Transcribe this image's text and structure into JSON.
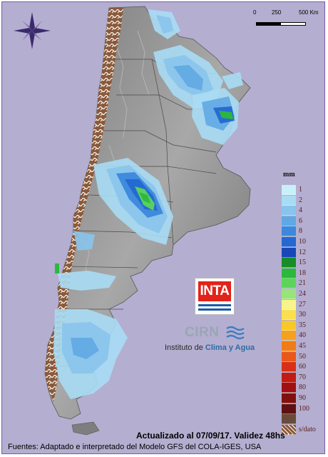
{
  "scale_bar": {
    "labels": [
      "0",
      "250",
      "500 Km"
    ]
  },
  "legend": {
    "title": "mm",
    "items": [
      {
        "label": "1",
        "color": "#c8f0f8"
      },
      {
        "label": "2",
        "color": "#a8dcf4"
      },
      {
        "label": "4",
        "color": "#88c4ec"
      },
      {
        "label": "6",
        "color": "#60a8e4"
      },
      {
        "label": "8",
        "color": "#3c88dc"
      },
      {
        "label": "10",
        "color": "#2468d0"
      },
      {
        "label": "12",
        "color": "#1848b8"
      },
      {
        "label": "15",
        "color": "#188c28"
      },
      {
        "label": "18",
        "color": "#2cb83c"
      },
      {
        "label": "21",
        "color": "#5cd45c"
      },
      {
        "label": "24",
        "color": "#98e478"
      },
      {
        "label": "27",
        "color": "#f8f48c"
      },
      {
        "label": "30",
        "color": "#f8e050"
      },
      {
        "label": "35",
        "color": "#f8c828"
      },
      {
        "label": "40",
        "color": "#f4a020"
      },
      {
        "label": "45",
        "color": "#f07c18"
      },
      {
        "label": "50",
        "color": "#e85818"
      },
      {
        "label": "60",
        "color": "#d83018"
      },
      {
        "label": "70",
        "color": "#c01c14"
      },
      {
        "label": "80",
        "color": "#a01010"
      },
      {
        "label": "90",
        "color": "#801010"
      },
      {
        "label": "100",
        "color": "#601010"
      },
      {
        "label": "",
        "color": "#6a4a3a"
      },
      {
        "label": "s/dato",
        "color": "#8a5a3a"
      }
    ]
  },
  "logos": {
    "inta": "INTA",
    "cirn": "CIRN",
    "institute_prefix": "Instituto de ",
    "institute_accent": "Clima y Agua"
  },
  "footer": {
    "date_line": "Actualizado al 07/09/17. Validez 48hs",
    "source_line": "Fuentes: Adaptado e interpretado del Modelo GFS del COLA-IGES, USA"
  },
  "map": {
    "colors": {
      "background": "#b4aed0",
      "land": "#8a8a8a",
      "andes_no_data": "#8a5a3a"
    }
  }
}
